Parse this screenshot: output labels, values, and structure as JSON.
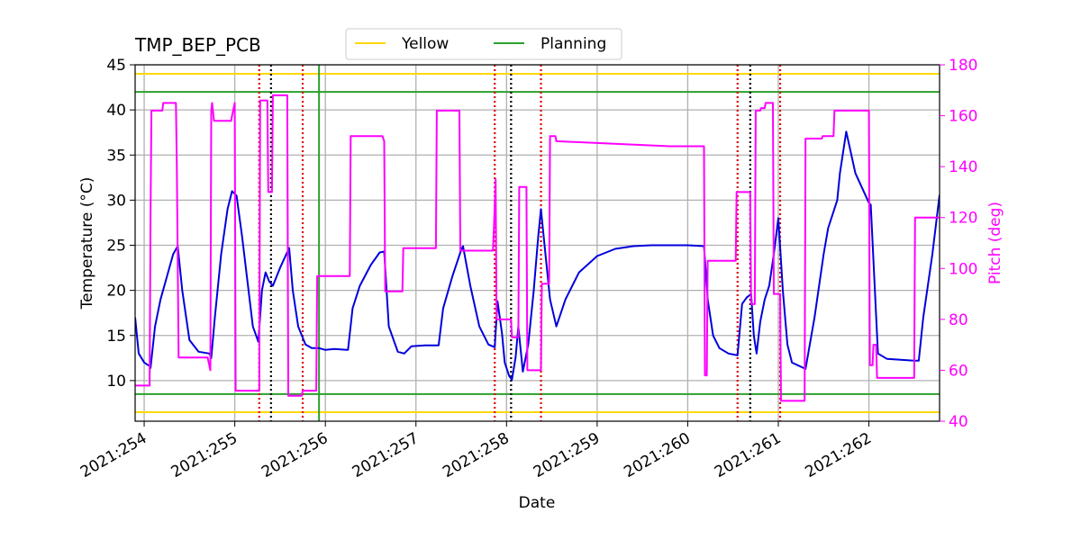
{
  "chart_data": {
    "type": "line",
    "title": "TMP_BEP_PCB",
    "xlabel": "Date",
    "ylabel_left": "Temperature ($^\\circ$C)",
    "ylabel_left_display": "Temperature (°C)",
    "ylabel_right": "Pitch (deg)",
    "x_ticks": [
      "2021:254",
      "2021:255",
      "2021:256",
      "2021:257",
      "2021:258",
      "2021:259",
      "2021:260",
      "2021:261",
      "2021:262"
    ],
    "xlim": [
      253.9,
      262.78
    ],
    "ylim_left": [
      5.5,
      45
    ],
    "ylim_right": [
      40,
      180
    ],
    "y_ticks_left": [
      10,
      15,
      20,
      25,
      30,
      35,
      40,
      45
    ],
    "y_ticks_right": [
      40,
      60,
      80,
      100,
      120,
      140,
      160,
      180
    ],
    "grid": true,
    "legend": {
      "placement": "top-center",
      "entries": [
        {
          "label": "Yellow",
          "color": "#ffd700"
        },
        {
          "label": "Planning",
          "color": "#2ca02c"
        }
      ]
    },
    "limits": {
      "yellow": [
        6.5,
        44
      ],
      "planning": [
        8.5,
        42
      ]
    },
    "colors": {
      "temperature": "#0000dd",
      "pitch": "#ff00ff",
      "yellow": "#ffd700",
      "planning": "#2ca02c",
      "red_vline": "#dd0000",
      "black_vline": "#000000",
      "green_vline": "#2ca02c",
      "right_axis": "#ff00ff"
    },
    "vlines": [
      {
        "x": 255.27,
        "style": "red-dotted"
      },
      {
        "x": 255.4,
        "style": "black-dotted"
      },
      {
        "x": 255.75,
        "style": "red-dotted"
      },
      {
        "x": 255.93,
        "style": "green-solid"
      },
      {
        "x": 257.87,
        "style": "red-dotted"
      },
      {
        "x": 258.05,
        "style": "black-dotted"
      },
      {
        "x": 258.38,
        "style": "red-dotted"
      },
      {
        "x": 260.55,
        "style": "red-dotted"
      },
      {
        "x": 260.69,
        "style": "black-dotted"
      },
      {
        "x": 261.02,
        "style": "red-dotted"
      }
    ],
    "series": [
      {
        "axis": "left",
        "x": [
          253.9,
          253.94,
          254.0,
          254.06,
          254.07,
          254.12,
          254.18,
          254.25,
          254.32,
          254.37,
          254.42,
          254.5,
          254.6,
          254.72,
          254.74,
          254.78,
          254.85,
          254.92,
          254.97,
          255.02,
          255.08,
          255.14,
          255.2,
          255.26,
          255.3,
          255.34,
          255.38,
          255.42,
          255.5,
          255.6,
          255.64,
          255.7,
          255.78,
          255.85,
          255.93,
          256.0,
          256.1,
          256.25,
          256.3,
          256.38,
          256.5,
          256.6,
          256.65,
          256.7,
          256.8,
          256.87,
          256.95,
          257.1,
          257.25,
          257.3,
          257.4,
          257.5,
          257.52,
          257.6,
          257.7,
          257.8,
          257.87,
          257.9,
          257.95,
          257.98,
          258.03,
          258.06,
          258.1,
          258.13,
          258.18,
          258.24,
          258.3,
          258.35,
          258.38,
          258.42,
          258.48,
          258.55,
          258.65,
          258.8,
          259.0,
          259.2,
          259.4,
          259.6,
          259.8,
          260.0,
          260.18,
          260.22,
          260.28,
          260.35,
          260.45,
          260.55,
          260.6,
          260.65,
          260.7,
          260.73,
          260.76,
          260.8,
          260.85,
          260.9,
          260.95,
          261.0,
          261.05,
          261.1,
          261.15,
          261.3,
          261.4,
          261.5,
          261.55,
          261.65,
          261.68,
          261.75,
          261.85,
          262.0,
          262.02,
          262.1,
          262.2,
          262.5,
          262.55,
          262.6,
          262.7,
          262.78
        ],
        "y": [
          17,
          13,
          12,
          11.6,
          11.4,
          16,
          19,
          21.5,
          24,
          24.9,
          20,
          14.5,
          13.2,
          13,
          12.5,
          17,
          24,
          29,
          31,
          30.5,
          26,
          21,
          16,
          14.3,
          20,
          22,
          21,
          20.5,
          22.5,
          24.7,
          20,
          16,
          14,
          13.6,
          13.6,
          13.4,
          13.5,
          13.4,
          18,
          20.5,
          22.8,
          24.2,
          24.3,
          16,
          13.2,
          13,
          13.8,
          13.9,
          13.9,
          18,
          21.5,
          24.5,
          24.9,
          20.5,
          16,
          14,
          13.7,
          18.8,
          15.2,
          12,
          10.5,
          10.1,
          12.6,
          16,
          11,
          14,
          20,
          26,
          29,
          25,
          19,
          16,
          19,
          22,
          23.8,
          24.6,
          24.9,
          25,
          25,
          25,
          24.9,
          19,
          15,
          13.6,
          13,
          12.8,
          18.5,
          19.2,
          19.6,
          15,
          13,
          16.5,
          19,
          20.5,
          24,
          28,
          20,
          14,
          12,
          11.3,
          17,
          24,
          26.9,
          30,
          33,
          37.6,
          33,
          29.7,
          29.5,
          13,
          12.4,
          12.2,
          12.2,
          17,
          24,
          30.6
        ]
      },
      {
        "axis": "right",
        "x": [
          253.9,
          254.06,
          254.07,
          254.08,
          254.2,
          254.21,
          254.35,
          254.36,
          254.38,
          254.7,
          254.73,
          254.74,
          254.75,
          254.77,
          254.78,
          254.96,
          254.97,
          255.0,
          255.01,
          255.27,
          255.28,
          255.36,
          255.37,
          255.41,
          255.42,
          255.58,
          255.59,
          255.74,
          255.75,
          255.9,
          255.91,
          256.27,
          256.28,
          256.63,
          256.65,
          256.66,
          256.85,
          256.86,
          257.22,
          257.23,
          257.48,
          257.49,
          257.85,
          257.86,
          257.88,
          257.89,
          258.05,
          258.06,
          258.13,
          258.14,
          258.22,
          258.23,
          258.38,
          258.39,
          258.47,
          258.48,
          258.54,
          258.55,
          259.8,
          260.18,
          260.19,
          260.21,
          260.22,
          260.53,
          260.54,
          260.69,
          260.7,
          260.74,
          260.75,
          260.8,
          260.81,
          260.85,
          260.86,
          260.94,
          260.95,
          261.02,
          261.03,
          261.29,
          261.3,
          261.48,
          261.49,
          261.61,
          261.62,
          262.0,
          262.01,
          262.04,
          262.05,
          262.08,
          262.09,
          262.45,
          262.46,
          262.5,
          262.51,
          262.78
        ],
        "y": [
          54,
          54,
          120,
          162,
          162,
          165,
          165,
          140,
          65,
          65,
          60,
          162,
          165,
          158,
          158,
          158,
          160,
          165,
          52,
          52,
          166,
          166,
          130,
          130,
          168,
          168,
          50,
          50,
          52,
          52,
          97,
          97,
          152,
          152,
          150,
          91,
          91,
          108,
          108,
          162,
          162,
          107,
          107,
          115,
          135,
          80,
          80,
          73,
          73,
          132,
          132,
          60,
          60,
          94,
          94,
          152,
          152,
          150,
          148,
          148,
          58,
          58,
          103,
          103,
          130,
          130,
          86,
          86,
          162,
          162,
          163,
          163,
          165,
          165,
          90,
          90,
          48,
          48,
          151,
          151,
          152,
          152,
          162,
          162,
          62,
          62,
          70,
          70,
          57,
          57,
          57,
          57,
          120,
          120
        ]
      }
    ]
  }
}
